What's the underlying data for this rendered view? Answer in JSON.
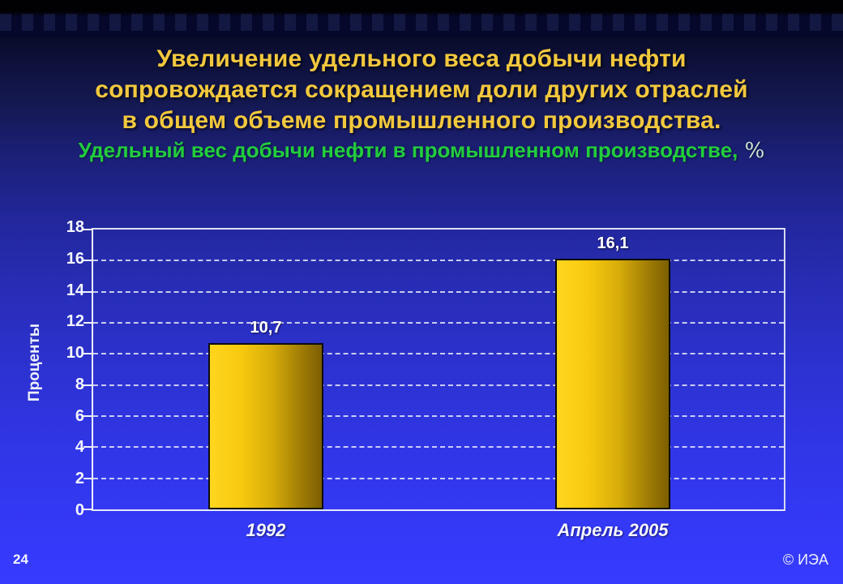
{
  "slide": {
    "page_number": "24",
    "footer_right": "© ИЭА",
    "title_lines": [
      "Увеличение удельного веса добычи нефти",
      "сопровождается сокращением доли других отраслей",
      "в общем объеме промышленного производства."
    ],
    "subtitle_text": "Удельный вес добычи нефти в промышленном производстве,",
    "subtitle_suffix": " %"
  },
  "colors": {
    "title": "#f2c83e",
    "subtitle": "#22cd3d",
    "bar_light": "#ffd61e",
    "bar_dark": "#7c5f02",
    "background_top": "#020208",
    "background_bottom": "#363bfe",
    "axis_text": "#f4f6fd"
  },
  "chart_data": {
    "type": "bar",
    "title": "Удельный вес добычи нефти в промышленном производстве, %",
    "categories": [
      "1992",
      "Апрель 2005"
    ],
    "values": [
      10.7,
      16.1
    ],
    "value_labels": [
      "10,7",
      "16,1"
    ],
    "xlabel": "",
    "ylabel": "Проценты",
    "ylim": [
      0,
      18
    ],
    "ytick_step": 2,
    "grid": "horizontal-dashed",
    "legend": "none"
  }
}
